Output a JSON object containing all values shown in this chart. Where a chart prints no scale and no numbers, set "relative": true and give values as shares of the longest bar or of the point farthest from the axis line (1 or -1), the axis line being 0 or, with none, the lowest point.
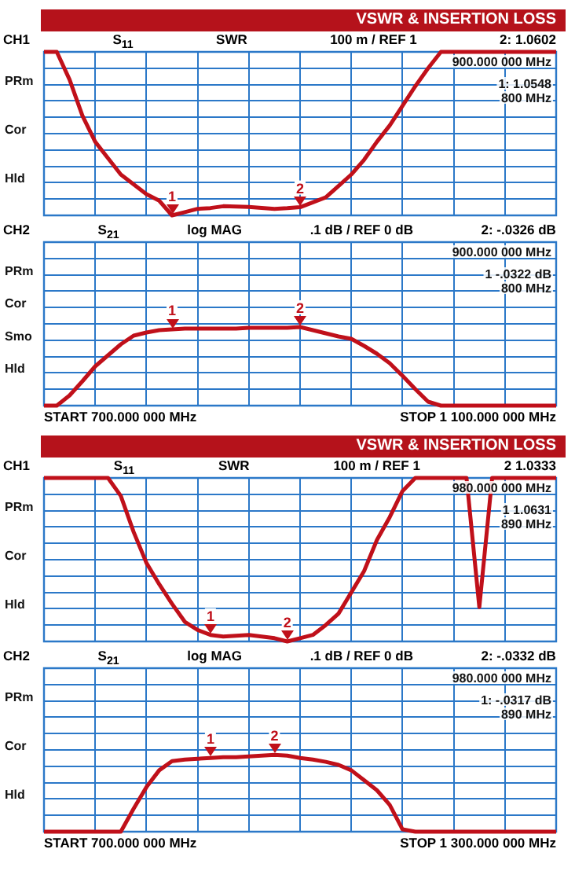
{
  "chart_data": [
    {
      "type": "line",
      "title": "VSWR & INSERTION LOSS",
      "relative": true,
      "grid": true,
      "legend": false,
      "marker": "none",
      "tick_labels": false,
      "color": "#c0101a",
      "categories": [
        null,
        null,
        null,
        null,
        null,
        null,
        null,
        null,
        null,
        null,
        null,
        null,
        null,
        null,
        null,
        null,
        null,
        null,
        null,
        null,
        null,
        null,
        null,
        null,
        null,
        null,
        null,
        null,
        null,
        null,
        null,
        null,
        null,
        null,
        null,
        null,
        null,
        null,
        null,
        null,
        null
      ],
      "values": [
        1,
        1,
        0.83,
        0.61,
        0.45,
        0.35,
        0.25,
        0.19,
        0.13,
        0.09,
        0,
        0.02,
        0.04,
        0.045,
        0.056,
        0.054,
        0.052,
        0.046,
        0.04,
        0.044,
        0.05,
        0.08,
        0.11,
        0.18,
        0.25,
        0.34,
        0.45,
        0.55,
        0.67,
        0.79,
        0.9,
        1,
        1,
        1,
        1,
        1,
        1,
        1,
        1,
        1,
        1
      ],
      "annotations": [
        "CH1",
        "S$_{11}$",
        "SWR",
        "100 m / REF 1",
        "2: 1.0602",
        "900.000 000 MHz",
        "1: 1.0548",
        "800 MHz",
        "PRm",
        "Cor",
        "Hld",
        {
          "text": "1",
          "y": 0
        },
        {
          "text": "2",
          "y": 0.05
        }
      ]
    },
    {
      "type": "line",
      "relative": true,
      "grid": true,
      "legend": false,
      "marker": "none",
      "tick_labels": false,
      "color": "#c0101a",
      "categories": [
        null,
        null,
        null,
        null,
        null,
        null,
        null,
        null,
        null,
        null,
        null,
        null,
        null,
        null,
        null,
        null,
        null,
        null,
        null,
        null,
        null,
        null,
        null,
        null,
        null,
        null,
        null,
        null,
        null,
        null,
        null,
        null,
        null,
        null,
        null,
        null,
        null,
        null,
        null,
        null,
        null
      ],
      "values": [
        0,
        0,
        0.13,
        0.31,
        0.5,
        0.64,
        0.78,
        0.89,
        0.93,
        0.96,
        0.97,
        0.98,
        0.98,
        0.98,
        0.98,
        0.98,
        0.99,
        0.99,
        0.99,
        0.99,
        1,
        0.96,
        0.92,
        0.88,
        0.85,
        0.76,
        0.66,
        0.54,
        0.38,
        0.21,
        0.05,
        0,
        0,
        0,
        0,
        0,
        0,
        0,
        0,
        0,
        0
      ],
      "annotations": [
        "CH2",
        "S$_{21}$",
        "log MAG",
        ".1 dB / REF 0 dB",
        "2: -.0326 dB",
        "900.000 000 MHz",
        "1 -.0322 dB",
        "800 MHz",
        "START 700.000 000 MHz",
        "STOP 1 100.000 000 MHz",
        "PRm",
        "Cor",
        "Smo",
        "Hld",
        {
          "text": "1",
          "y": 0.97
        },
        {
          "text": "2",
          "y": 1
        }
      ]
    },
    {
      "type": "line",
      "title": "VSWR & INSERTION LOSS",
      "relative": true,
      "grid": true,
      "legend": false,
      "marker": "none",
      "tick_labels": false,
      "color": "#c0101a",
      "categories": [
        null,
        null,
        null,
        null,
        null,
        null,
        null,
        null,
        null,
        null,
        null,
        null,
        null,
        null,
        null,
        null,
        null,
        null,
        null,
        null,
        null,
        null,
        null,
        null,
        null,
        null,
        null,
        null,
        null,
        null,
        null,
        null,
        null,
        null,
        null,
        null,
        null,
        null,
        null,
        null,
        null
      ],
      "values": [
        1,
        1,
        1,
        1,
        1,
        1,
        0.89,
        0.67,
        0.48,
        0.35,
        0.23,
        0.12,
        0.07,
        0.04,
        0.03,
        0.035,
        0.04,
        0.03,
        0.02,
        0,
        0.02,
        0.04,
        0.1,
        0.17,
        0.3,
        0.43,
        0.62,
        0.76,
        0.92,
        1,
        1,
        1,
        1,
        1,
        0.21,
        1,
        1,
        1,
        1,
        1,
        1
      ],
      "annotations": [
        "CH1",
        "S$_{11}$",
        "SWR",
        "100 m / REF 1",
        "2 1.0333",
        "980.000 000 MHz",
        "1 1.0631",
        "890 MHz",
        "PRm",
        "Cor",
        "Hld",
        {
          "text": "1",
          "y": 0.04
        },
        {
          "text": "2",
          "y": 0
        }
      ]
    },
    {
      "type": "line",
      "relative": true,
      "grid": true,
      "legend": false,
      "marker": "none",
      "tick_labels": false,
      "color": "#c0101a",
      "categories": [
        null,
        null,
        null,
        null,
        null,
        null,
        null,
        null,
        null,
        null,
        null,
        null,
        null,
        null,
        null,
        null,
        null,
        null,
        null,
        null,
        null,
        null,
        null,
        null,
        null,
        null,
        null,
        null,
        null,
        null,
        null,
        null,
        null,
        null,
        null,
        null,
        null,
        null,
        null,
        null,
        null
      ],
      "values": [
        0,
        0,
        0,
        0,
        0,
        0,
        0,
        0.3,
        0.58,
        0.8,
        0.92,
        0.94,
        0.95,
        0.96,
        0.97,
        0.97,
        0.98,
        0.99,
        1,
        0.99,
        0.96,
        0.94,
        0.91,
        0.87,
        0.8,
        0.67,
        0.54,
        0.35,
        0.03,
        0,
        0,
        0,
        0,
        0,
        0,
        0,
        0,
        0,
        0,
        0,
        0
      ],
      "annotations": [
        "CH2",
        "S$_{21}$",
        "log MAG",
        ".1 dB / REF 0 dB",
        "2: -.0332 dB",
        "980.000 000 MHz",
        "1: -.0317 dB",
        "890 MHz",
        "START 700.000 000 MHz",
        "STOP 1 300.000 000 MHz",
        "PRm",
        "Cor",
        "Hld",
        {
          "text": "1",
          "y": 0.96
        },
        {
          "text": "2",
          "y": 1
        }
      ]
    }
  ]
}
